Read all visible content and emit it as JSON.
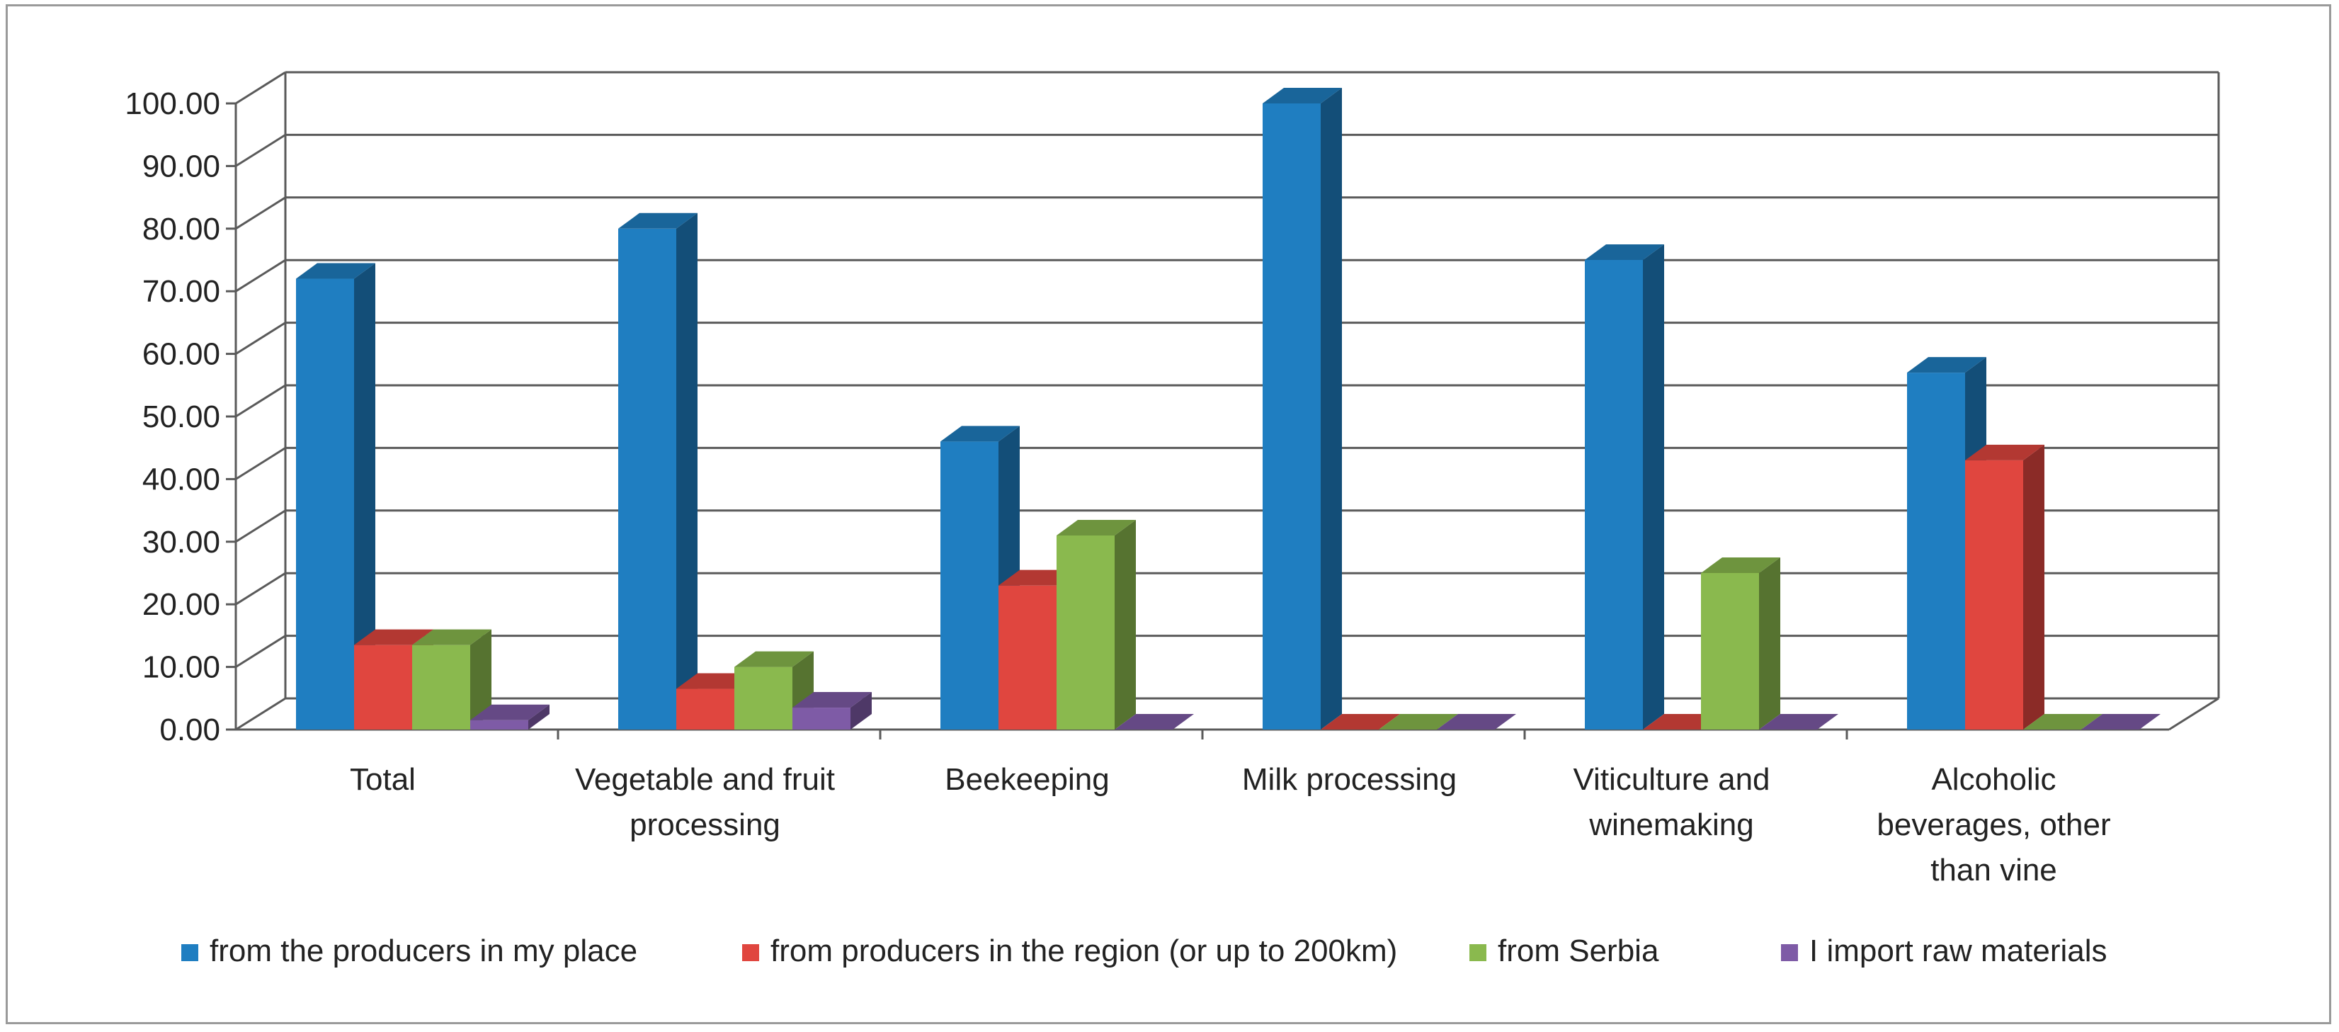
{
  "chart_data": {
    "type": "bar",
    "style": "3d-clustered-column",
    "title": "",
    "xlabel": "",
    "ylabel": "",
    "ylim": [
      0,
      100
    ],
    "ytick_step": 10,
    "ytick_labels": [
      "0.00",
      "10.00",
      "20.00",
      "30.00",
      "40.00",
      "50.00",
      "60.00",
      "70.00",
      "80.00",
      "90.00",
      "100.00"
    ],
    "grid": true,
    "legend_position": "bottom",
    "categories": [
      [
        "Total"
      ],
      [
        "Vegetable and fruit",
        "processing"
      ],
      [
        "Beekeeping"
      ],
      [
        "Milk processing"
      ],
      [
        "Viticulture and",
        "winemaking"
      ],
      [
        "Alcoholic",
        "beverages, other",
        "than vine"
      ]
    ],
    "series": [
      {
        "name": "from the producers in my place",
        "color": "#1F7EC1",
        "values": [
          72,
          80,
          46,
          100,
          75,
          57
        ]
      },
      {
        "name": "from producers in the region (or up to 200km)",
        "color": "#E0463F",
        "values": [
          13.5,
          6.5,
          23,
          0,
          0,
          43
        ]
      },
      {
        "name": "from Serbia",
        "color": "#8AB94E",
        "values": [
          13.5,
          10,
          31,
          0,
          25,
          0
        ]
      },
      {
        "name": "I import raw materials",
        "color": "#7E5BA6",
        "values": [
          1.5,
          3.5,
          0,
          0,
          0,
          0
        ]
      }
    ]
  }
}
